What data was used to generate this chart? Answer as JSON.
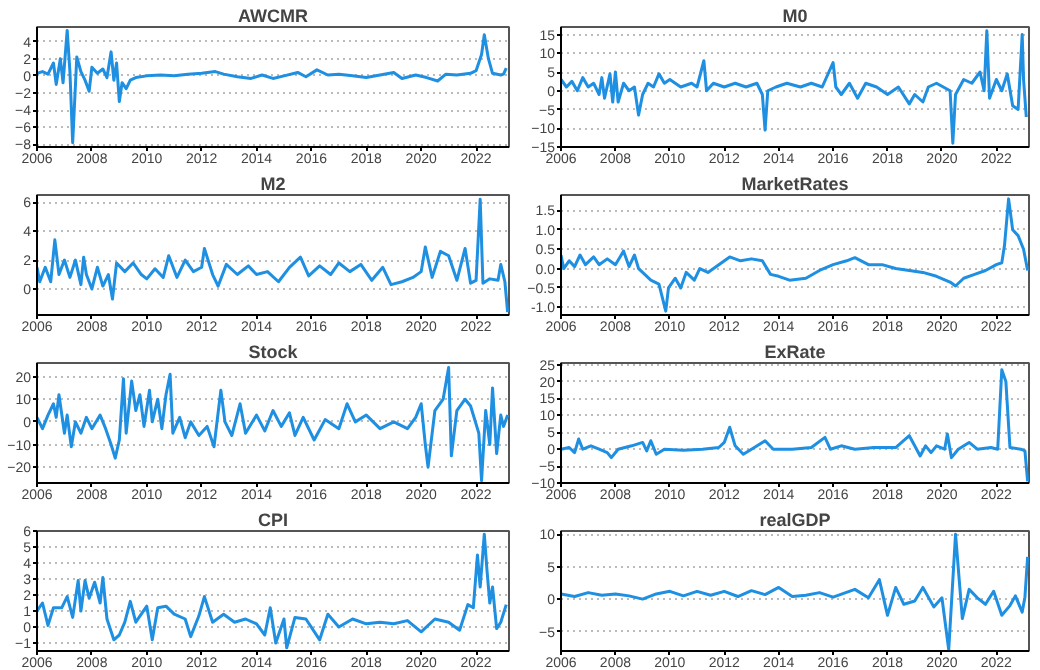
{
  "chart_data": [
    {
      "type": "line",
      "title": "AWCMR",
      "color": "#1e8fe1",
      "grid": "y",
      "xlim": [
        2006,
        2023.2
      ],
      "xticks": [
        2006,
        2008,
        2010,
        2012,
        2014,
        2016,
        2018,
        2020,
        2022
      ],
      "ylim": [
        -8.3,
        5.7
      ],
      "yticks": [
        -8,
        -6,
        -4,
        -2,
        0,
        2,
        4
      ],
      "x": [
        2006.0,
        2006.2,
        2006.4,
        2006.6,
        2006.7,
        2006.85,
        2006.95,
        2007.1,
        2007.2,
        2007.3,
        2007.45,
        2007.6,
        2007.75,
        2007.9,
        2008.0,
        2008.2,
        2008.4,
        2008.55,
        2008.7,
        2008.8,
        2008.9,
        2009.0,
        2009.1,
        2009.25,
        2009.4,
        2009.6,
        2010,
        2010.5,
        2011,
        2011.5,
        2012,
        2012.5,
        2012.8,
        2013.3,
        2013.8,
        2014.2,
        2014.6,
        2015,
        2015.5,
        2015.8,
        2016.2,
        2016.6,
        2017,
        2017.5,
        2018,
        2018.5,
        2019,
        2019.3,
        2019.8,
        2020.2,
        2020.6,
        2020.9,
        2021.3,
        2021.8,
        2022.0,
        2022.2,
        2022.3,
        2022.45,
        2022.6,
        2022.9,
        2023.0,
        2023.1
      ],
      "values": [
        0.3,
        0.5,
        0.2,
        1.5,
        -1.0,
        2.0,
        -0.8,
        5.3,
        0.5,
        -7.8,
        2.2,
        0.5,
        -0.5,
        -1.8,
        1.0,
        0.3,
        0.8,
        -0.2,
        2.8,
        -0.5,
        1.5,
        -3.0,
        -0.8,
        -1.5,
        -0.5,
        -0.2,
        0,
        0.1,
        0,
        0.2,
        0.3,
        0.5,
        0.2,
        -0.1,
        -0.3,
        0.1,
        -0.3,
        0,
        0.4,
        -0.1,
        0.7,
        0.1,
        0.2,
        0,
        -0.2,
        0.1,
        0.4,
        -0.3,
        0.1,
        -0.2,
        -0.6,
        0.2,
        0.1,
        0.3,
        0.6,
        2.5,
        4.8,
        2.0,
        0.3,
        0.1,
        0.2,
        0.9
      ]
    },
    {
      "type": "line",
      "title": "M0",
      "color": "#1e8fe1",
      "grid": "y",
      "xlim": [
        2006,
        2023.2
      ],
      "xticks": [
        2006,
        2008,
        2010,
        2012,
        2014,
        2016,
        2018,
        2020,
        2022
      ],
      "ylim": [
        -15,
        17
      ],
      "yticks": [
        -15,
        -10,
        -5,
        0,
        5,
        10,
        15
      ],
      "x": [
        2006,
        2006.2,
        2006.4,
        2006.6,
        2006.8,
        2007,
        2007.2,
        2007.4,
        2007.5,
        2007.6,
        2007.8,
        2007.9,
        2008,
        2008.1,
        2008.3,
        2008.5,
        2008.7,
        2008.85,
        2009,
        2009.2,
        2009.4,
        2009.6,
        2009.8,
        2010,
        2010.4,
        2010.8,
        2011,
        2011.25,
        2011.35,
        2011.6,
        2012,
        2012.4,
        2012.8,
        2013.2,
        2013.4,
        2013.5,
        2013.6,
        2013.9,
        2014.3,
        2014.8,
        2015.2,
        2015.6,
        2016.0,
        2016.1,
        2016.3,
        2016.6,
        2016.9,
        2017.2,
        2017.6,
        2018,
        2018.4,
        2018.8,
        2019,
        2019.3,
        2019.5,
        2019.8,
        2020.3,
        2020.4,
        2020.5,
        2020.8,
        2021.1,
        2021.4,
        2021.55,
        2021.65,
        2021.75,
        2022,
        2022.2,
        2022.4,
        2022.6,
        2022.8,
        2022.95,
        2023.0,
        2023.1
      ],
      "values": [
        3,
        1,
        2.5,
        0,
        3.5,
        1,
        2,
        -1,
        3.5,
        -2,
        4.5,
        -3,
        5,
        -3,
        2,
        0,
        1,
        -6.5,
        -1,
        2,
        1,
        4.5,
        2,
        3,
        1,
        2,
        1,
        8,
        0,
        2,
        1,
        2,
        1,
        2,
        -1,
        -10.5,
        0,
        1,
        2,
        1,
        2,
        1,
        7.5,
        1,
        -1,
        2,
        -2,
        2,
        1,
        -1,
        1,
        -3.5,
        -1,
        -3,
        1,
        2,
        0,
        -14,
        -1,
        3,
        2,
        5,
        0,
        16,
        -2,
        3,
        0,
        4.5,
        -4,
        -5,
        15,
        3,
        -7
      ]
    },
    {
      "type": "line",
      "title": "M2",
      "color": "#1e8fe1",
      "grid": "y",
      "xlim": [
        2006,
        2023.2
      ],
      "xticks": [
        2006,
        2008,
        2010,
        2012,
        2014,
        2016,
        2018,
        2020,
        2022
      ],
      "ylim": [
        -1.8,
        6.5
      ],
      "yticks": [
        0,
        2,
        4,
        6
      ],
      "x": [
        2006,
        2006.1,
        2006.3,
        2006.5,
        2006.65,
        2006.8,
        2007,
        2007.2,
        2007.4,
        2007.6,
        2007.7,
        2007.8,
        2008,
        2008.2,
        2008.4,
        2008.6,
        2008.75,
        2008.9,
        2009.2,
        2009.5,
        2009.8,
        2010,
        2010.3,
        2010.6,
        2010.8,
        2011.1,
        2011.4,
        2011.7,
        2012,
        2012.1,
        2012.4,
        2012.6,
        2012.9,
        2013.3,
        2013.7,
        2014,
        2014.4,
        2014.8,
        2015.2,
        2015.6,
        2015.9,
        2016.3,
        2016.7,
        2017,
        2017.4,
        2017.8,
        2018.2,
        2018.6,
        2018.9,
        2019.3,
        2019.7,
        2020,
        2020.15,
        2020.4,
        2020.7,
        2021,
        2021.3,
        2021.6,
        2021.8,
        2022.0,
        2022.15,
        2022.25,
        2022.5,
        2022.8,
        2022.9,
        2023.05,
        2023.15
      ],
      "values": [
        1.5,
        0.5,
        1.5,
        0.5,
        3.4,
        1,
        2,
        0.8,
        2,
        0.3,
        2.2,
        1,
        0,
        1.5,
        0.2,
        1,
        -0.7,
        1.8,
        1.2,
        1.8,
        1,
        0.7,
        1.4,
        0.8,
        2.3,
        0.8,
        2,
        1.2,
        1.5,
        2.8,
        1,
        0.2,
        1.7,
        1,
        1.6,
        1,
        1.2,
        0.5,
        1.5,
        2.2,
        0.9,
        1.6,
        1.0,
        1.8,
        1.2,
        1.7,
        0.6,
        1.5,
        0.3,
        0.5,
        0.8,
        1.2,
        2.9,
        0.8,
        2.6,
        2.3,
        0.6,
        2.8,
        0.4,
        0.6,
        6.2,
        0.4,
        0.7,
        0.6,
        1.7,
        0.5,
        -1.6
      ]
    },
    {
      "type": "line",
      "title": "MarketRates",
      "color": "#1e8fe1",
      "grid": "y",
      "xlim": [
        2006,
        2023.2
      ],
      "xticks": [
        2006,
        2008,
        2010,
        2012,
        2014,
        2016,
        2018,
        2020,
        2022
      ],
      "ylim": [
        -1.2,
        1.9
      ],
      "yticks": [
        {
          "value": -1,
          "label": "-1.0"
        },
        -0.5,
        {
          "value": 0,
          "label": "0.0"
        },
        0.5,
        {
          "value": 1,
          "label": "1.0"
        },
        1.5
      ],
      "x": [
        2006,
        2006.1,
        2006.3,
        2006.5,
        2006.7,
        2006.9,
        2007.2,
        2007.4,
        2007.7,
        2008,
        2008.3,
        2008.5,
        2008.7,
        2008.85,
        2009.0,
        2009.3,
        2009.6,
        2009.85,
        2009.95,
        2010.2,
        2010.4,
        2010.6,
        2010.9,
        2011.1,
        2011.4,
        2011.8,
        2012.2,
        2012.6,
        2013,
        2013.4,
        2013.7,
        2014,
        2014.4,
        2015,
        2015.5,
        2016,
        2016.5,
        2016.8,
        2017.3,
        2017.8,
        2018.3,
        2018.8,
        2019.3,
        2019.8,
        2020.3,
        2020.5,
        2020.8,
        2021.2,
        2021.6,
        2022.0,
        2022.2,
        2022.3,
        2022.45,
        2022.6,
        2022.8,
        2023.0,
        2023.15
      ],
      "values": [
        0.35,
        0.0,
        0.2,
        0.05,
        0.35,
        0.1,
        0.3,
        0.1,
        0.25,
        0.1,
        0.45,
        0.05,
        0.35,
        0.0,
        -0.1,
        -0.3,
        -0.4,
        -1.1,
        -0.5,
        -0.25,
        -0.5,
        -0.1,
        -0.3,
        0.0,
        -0.1,
        0.1,
        0.3,
        0.2,
        0.25,
        0.2,
        -0.15,
        -0.2,
        -0.3,
        -0.25,
        -0.05,
        0.1,
        0.2,
        0.28,
        0.1,
        0.1,
        0.0,
        -0.05,
        -0.1,
        -0.2,
        -0.35,
        -0.45,
        -0.25,
        -0.15,
        -0.05,
        0.1,
        0.15,
        0.6,
        1.8,
        1.0,
        0.85,
        0.5,
        -0.05
      ]
    },
    {
      "type": "line",
      "title": "Stock",
      "color": "#1e8fe1",
      "grid": "y",
      "xlim": [
        2006,
        2023.2
      ],
      "xticks": [
        2006,
        2008,
        2010,
        2012,
        2014,
        2016,
        2018,
        2020,
        2022
      ],
      "ylim": [
        -27,
        26
      ],
      "yticks": [
        -20,
        -10,
        0,
        10,
        20
      ],
      "x": [
        2006,
        2006.2,
        2006.4,
        2006.6,
        2006.7,
        2006.8,
        2007,
        2007.1,
        2007.25,
        2007.4,
        2007.6,
        2007.8,
        2008,
        2008.3,
        2008.5,
        2008.7,
        2008.85,
        2009.0,
        2009.15,
        2009.25,
        2009.45,
        2009.6,
        2009.75,
        2009.9,
        2010.1,
        2010.2,
        2010.4,
        2010.55,
        2010.7,
        2010.85,
        2010.95,
        2011.2,
        2011.4,
        2011.6,
        2011.9,
        2012.2,
        2012.45,
        2012.7,
        2012.85,
        2013.1,
        2013.4,
        2013.6,
        2014,
        2014.3,
        2014.6,
        2014.9,
        2015.2,
        2015.4,
        2015.7,
        2016.1,
        2016.5,
        2017,
        2017.3,
        2017.6,
        2018,
        2018.5,
        2019,
        2019.5,
        2019.8,
        2020.0,
        2020.15,
        2020.25,
        2020.5,
        2020.8,
        2021.0,
        2021.1,
        2021.3,
        2021.6,
        2021.8,
        2022.1,
        2022.2,
        2022.35,
        2022.5,
        2022.6,
        2022.75,
        2022.9,
        2023.0,
        2023.15
      ],
      "values": [
        2,
        -3,
        3,
        8,
        2,
        12,
        -5,
        3,
        -11,
        0,
        -5,
        2,
        -3,
        3,
        -3,
        -10,
        -16,
        -8,
        19,
        -5,
        18,
        5,
        12,
        -2,
        14,
        0,
        10,
        -3,
        12,
        21,
        -5,
        2,
        -7,
        0,
        -6,
        -2,
        -11,
        14,
        0,
        -6,
        8,
        -5,
        3,
        -4,
        5,
        -2,
        4,
        -6,
        2,
        -8,
        1,
        -3,
        8,
        0,
        3,
        -3,
        0,
        -3,
        2,
        8,
        -10,
        -20,
        5,
        10,
        24,
        -15,
        5,
        10,
        7,
        -5,
        -26,
        5,
        -10,
        15,
        -14,
        3,
        -2,
        3
      ]
    },
    {
      "type": "line",
      "title": "ExRate",
      "color": "#1e8fe1",
      "grid": "y",
      "xlim": [
        2006,
        2023.2
      ],
      "xticks": [
        2006,
        2008,
        2010,
        2012,
        2014,
        2016,
        2018,
        2020,
        2022
      ],
      "ylim": [
        -10,
        25.5
      ],
      "yticks": [
        -10,
        -5,
        0,
        5,
        10,
        15,
        20,
        25
      ],
      "x": [
        2006,
        2006.3,
        2006.5,
        2006.65,
        2006.8,
        2007.1,
        2007.4,
        2007.7,
        2007.85,
        2008.1,
        2008.6,
        2009.0,
        2009.15,
        2009.3,
        2009.5,
        2009.8,
        2010.5,
        2011.2,
        2011.8,
        2012.0,
        2012.2,
        2012.4,
        2012.7,
        2013.0,
        2013.5,
        2013.8,
        2014.5,
        2015.2,
        2015.7,
        2015.9,
        2016.3,
        2016.8,
        2017.5,
        2018.3,
        2018.8,
        2019.0,
        2019.2,
        2019.4,
        2019.6,
        2019.8,
        2020.1,
        2020.2,
        2020.35,
        2020.6,
        2021.0,
        2021.3,
        2021.8,
        2022.05,
        2022.2,
        2022.35,
        2022.5,
        2022.9,
        2023.05,
        2023.15
      ],
      "values": [
        0,
        0.5,
        -1,
        3,
        0,
        1,
        0,
        -1,
        -2.5,
        0,
        1,
        2,
        -0.5,
        2.5,
        -1.5,
        0,
        -0.3,
        0,
        0.5,
        2,
        6.5,
        1,
        -1.5,
        0,
        2.5,
        0,
        0,
        0.5,
        3.5,
        0,
        1,
        0,
        0.5,
        0.5,
        4,
        1,
        -2,
        1,
        -1,
        1,
        0,
        4.5,
        -2.5,
        0,
        2,
        0,
        0.5,
        0,
        23.5,
        20,
        0.5,
        0,
        -0.5,
        -9.5
      ]
    },
    {
      "type": "line",
      "title": "CPI",
      "color": "#1e8fe1",
      "grid": "y",
      "xlim": [
        2006,
        2023.2
      ],
      "xticks": [
        2006,
        2008,
        2010,
        2012,
        2014,
        2016,
        2018,
        2020,
        2022
      ],
      "ylim": [
        -1.5,
        6
      ],
      "yticks": [
        -1,
        0,
        1,
        2,
        3,
        4,
        5,
        6
      ],
      "x": [
        2006,
        2006.2,
        2006.4,
        2006.6,
        2006.9,
        2007.1,
        2007.3,
        2007.5,
        2007.6,
        2007.75,
        2007.9,
        2008.1,
        2008.3,
        2008.4,
        2008.55,
        2008.8,
        2009.0,
        2009.2,
        2009.4,
        2009.6,
        2009.8,
        2010.0,
        2010.2,
        2010.4,
        2010.7,
        2011.0,
        2011.4,
        2011.6,
        2011.9,
        2012.1,
        2012.4,
        2012.8,
        2013.2,
        2013.6,
        2014,
        2014.3,
        2014.5,
        2014.7,
        2015.0,
        2015.1,
        2015.4,
        2015.8,
        2016.3,
        2016.6,
        2017,
        2017.5,
        2018,
        2018.5,
        2019,
        2019.5,
        2020,
        2020.5,
        2021.0,
        2021.4,
        2021.7,
        2021.9,
        2022.05,
        2022.15,
        2022.3,
        2022.4,
        2022.5,
        2022.6,
        2022.75,
        2022.9,
        2023.1
      ],
      "values": [
        1,
        1.5,
        0.1,
        1.2,
        1.2,
        1.9,
        0.6,
        2.9,
        1,
        2.9,
        1.8,
        2.8,
        1.5,
        3.1,
        0.5,
        -0.8,
        -0.5,
        0.3,
        1.6,
        0.3,
        0.8,
        1.3,
        -0.8,
        1.2,
        1.3,
        0.8,
        0.5,
        -0.6,
        0.7,
        1.9,
        0.3,
        0.8,
        0.3,
        0.5,
        0.2,
        -0.5,
        1.2,
        -1.0,
        0.5,
        -1.3,
        0.6,
        0.5,
        -0.8,
        0.8,
        0,
        0.5,
        0.2,
        0.3,
        0.2,
        0.4,
        -0.3,
        0.5,
        0.3,
        -0.2,
        1.4,
        1.2,
        4.5,
        2.5,
        5.8,
        3.5,
        1.5,
        2.5,
        -0.1,
        0.3,
        1.4
      ]
    },
    {
      "type": "line",
      "title": "realGDP",
      "color": "#1e8fe1",
      "grid": "y",
      "xlim": [
        2006,
        2023.2
      ],
      "xticks": [
        2006,
        2008,
        2010,
        2012,
        2014,
        2016,
        2018,
        2020,
        2022
      ],
      "ylim": [
        -8,
        10.5
      ],
      "yticks": [
        -5,
        0,
        5,
        10
      ],
      "x": [
        2006,
        2006.5,
        2007,
        2007.5,
        2008,
        2008.5,
        2009,
        2009.5,
        2010,
        2010.5,
        2011,
        2011.5,
        2012,
        2012.5,
        2013,
        2013.5,
        2014,
        2014.5,
        2015,
        2015.5,
        2016,
        2016.8,
        2017.3,
        2017.7,
        2018.0,
        2018.3,
        2018.6,
        2019.0,
        2019.3,
        2019.7,
        2020.0,
        2020.25,
        2020.5,
        2020.75,
        2021.0,
        2021.3,
        2021.6,
        2021.9,
        2022.2,
        2022.5,
        2022.7,
        2022.95,
        2023.05,
        2023.15
      ],
      "values": [
        0.8,
        0.4,
        1,
        0.6,
        0.8,
        0.5,
        0,
        0.8,
        1.2,
        0.5,
        1.2,
        0.6,
        1.2,
        0.4,
        1.3,
        0.7,
        1.8,
        0.4,
        0.6,
        1,
        0.3,
        1.5,
        0.2,
        3,
        -2.5,
        1.8,
        -0.8,
        -0.3,
        1.8,
        -1.2,
        0.2,
        -7.8,
        10,
        -3,
        1.5,
        0.2,
        -0.8,
        1.2,
        -2.5,
        -1.0,
        0.5,
        -2,
        0.3,
        6.5
      ]
    }
  ]
}
